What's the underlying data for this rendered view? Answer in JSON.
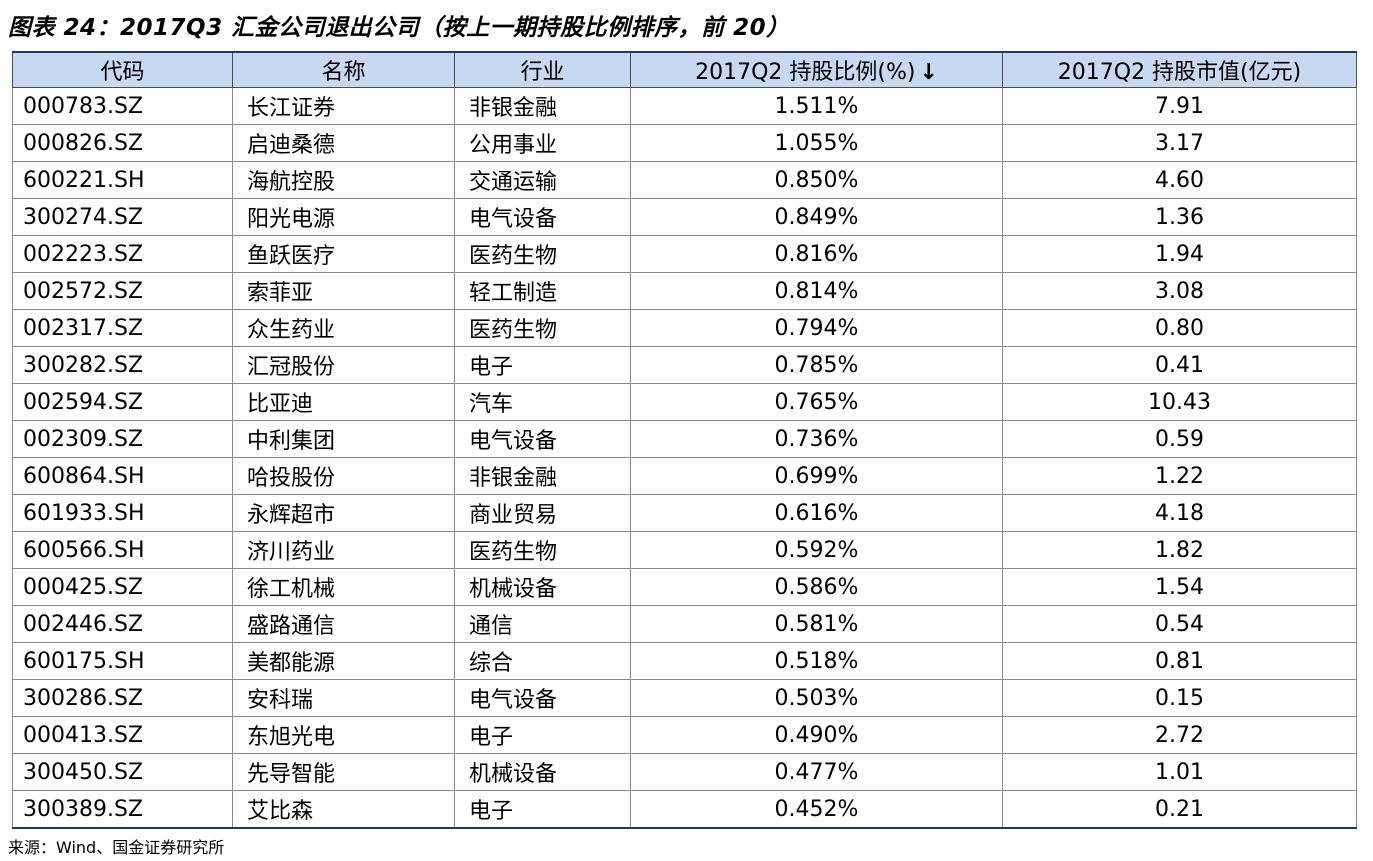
{
  "title": "图表 24：2017Q3 汇金公司退出公司（按上一期持股比例排序，前 20）",
  "table": {
    "headers": [
      "代码",
      "名称",
      "行业",
      "2017Q2 持股比例(%)",
      "2017Q2 持股市值(亿元)"
    ],
    "sort_arrow": "↓",
    "rows": [
      [
        "000783.SZ",
        "长江证券",
        "非银金融",
        "1.511%",
        "7.91"
      ],
      [
        "000826.SZ",
        "启迪桑德",
        "公用事业",
        "1.055%",
        "3.17"
      ],
      [
        "600221.SH",
        "海航控股",
        "交通运输",
        "0.850%",
        "4.60"
      ],
      [
        "300274.SZ",
        "阳光电源",
        "电气设备",
        "0.849%",
        "1.36"
      ],
      [
        "002223.SZ",
        "鱼跃医疗",
        "医药生物",
        "0.816%",
        "1.94"
      ],
      [
        "002572.SZ",
        "索菲亚",
        "轻工制造",
        "0.814%",
        "3.08"
      ],
      [
        "002317.SZ",
        "众生药业",
        "医药生物",
        "0.794%",
        "0.80"
      ],
      [
        "300282.SZ",
        "汇冠股份",
        "电子",
        "0.785%",
        "0.41"
      ],
      [
        "002594.SZ",
        "比亚迪",
        "汽车",
        "0.765%",
        "10.43"
      ],
      [
        "002309.SZ",
        "中利集团",
        "电气设备",
        "0.736%",
        "0.59"
      ],
      [
        "600864.SH",
        "哈投股份",
        "非银金融",
        "0.699%",
        "1.22"
      ],
      [
        "601933.SH",
        "永辉超市",
        "商业贸易",
        "0.616%",
        "4.18"
      ],
      [
        "600566.SH",
        "济川药业",
        "医药生物",
        "0.592%",
        "1.82"
      ],
      [
        "000425.SZ",
        "徐工机械",
        "机械设备",
        "0.586%",
        "1.54"
      ],
      [
        "002446.SZ",
        "盛路通信",
        "通信",
        "0.581%",
        "0.54"
      ],
      [
        "600175.SH",
        "美都能源",
        "综合",
        "0.518%",
        "0.81"
      ],
      [
        "300286.SZ",
        "安科瑞",
        "电气设备",
        "0.503%",
        "0.15"
      ],
      [
        "000413.SZ",
        "东旭光电",
        "电子",
        "0.490%",
        "2.72"
      ],
      [
        "300450.SZ",
        "先导智能",
        "机械设备",
        "0.477%",
        "1.01"
      ],
      [
        "300389.SZ",
        "艾比森",
        "电子",
        "0.452%",
        "0.21"
      ]
    ]
  },
  "source": "来源：Wind、国金证券研究所"
}
